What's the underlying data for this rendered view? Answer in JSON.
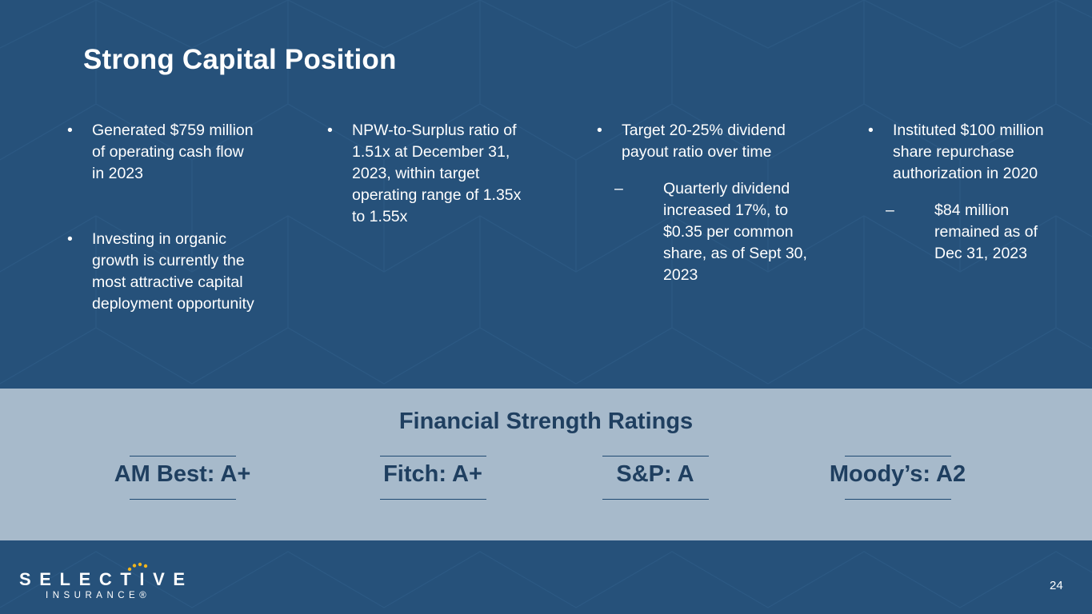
{
  "slide": {
    "title": "Strong Capital Position",
    "page_number": "24"
  },
  "columns": [
    {
      "bullets": [
        {
          "text": "Generated $759 million of operating cash flow in 2023"
        },
        {
          "text": "Investing in organic growth is currently the most attractive capital deployment opportunity"
        }
      ]
    },
    {
      "bullets": [
        {
          "text": "NPW-to-Surplus ratio of 1.51x at December 31, 2023, within target operating range of 1.35x to 1.55x"
        }
      ]
    },
    {
      "bullets": [
        {
          "text": "Target 20-25% dividend payout ratio over time",
          "sub": "Quarterly dividend increased 17%, to $0.35 per common share, as of Sept 30, 2023"
        }
      ]
    },
    {
      "bullets": [
        {
          "text": "Instituted $100 million share repurchase authorization in 2020",
          "sub": "$84 million remained as of Dec 31, 2023"
        }
      ]
    }
  ],
  "ratings": {
    "title": "Financial Strength Ratings",
    "items": [
      {
        "label": "AM Best: A+"
      },
      {
        "label": "Fitch: A+"
      },
      {
        "label": "S&P: A"
      },
      {
        "label": "Moody’s: A2"
      }
    ]
  },
  "logo": {
    "name": "SELECTIVE",
    "subtitle": "INSURANCE®"
  },
  "colors": {
    "background": "#26517a",
    "band": "#a7bacb",
    "band_text": "#1f3f60",
    "logo_dots": "#f2b51c"
  }
}
